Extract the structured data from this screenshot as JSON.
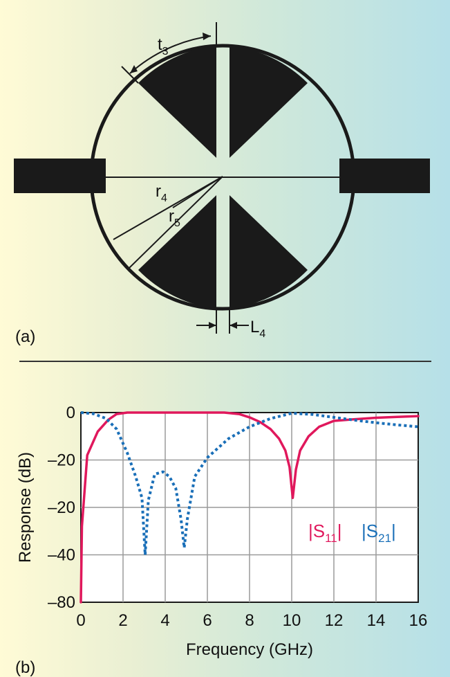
{
  "panel_a": {
    "label": "(a)",
    "dim_t": "t",
    "dim_t_sub": "3",
    "dim_r4": "r",
    "dim_r4_sub": "4",
    "dim_r5": "r",
    "dim_r5_sub": "5",
    "dim_L": "L",
    "dim_L_sub": "4"
  },
  "panel_b": {
    "label": "(b)",
    "legend_s11": "|S",
    "legend_s11_sub": "11",
    "legend_s11_end": "|",
    "legend_s21": "|S",
    "legend_s21_sub": "21",
    "legend_s21_end": "|",
    "s11_color": "#e0185c",
    "s21_color": "#1a6fb8"
  },
  "chart_data": {
    "type": "line",
    "xlabel": "Frequency (GHz)",
    "ylabel": "Response (dB)",
    "xlim": [
      0,
      16
    ],
    "x_ticks": [
      "0",
      "2",
      "4",
      "6",
      "8",
      "10",
      "12",
      "14",
      "16"
    ],
    "y_ticks": [
      "0",
      "–20",
      "–20",
      "–40",
      "–80"
    ],
    "grid": true,
    "series": [
      {
        "name": "|S11|",
        "style": "solid",
        "color": "#e0185c",
        "x": [
          0,
          0.05,
          0.3,
          0.8,
          1.3,
          1.7,
          2.2,
          3,
          4,
          5,
          6,
          6.8,
          7.5,
          8,
          8.5,
          9,
          9.4,
          9.7,
          9.9,
          10.05,
          10.2,
          10.4,
          10.8,
          11.3,
          12,
          13,
          14,
          15,
          16
        ],
        "y": [
          -80,
          -48,
          -18,
          -8,
          -3,
          -0.6,
          0,
          0,
          0,
          0,
          0,
          0,
          -0.6,
          -2,
          -4,
          -7,
          -11,
          -16,
          -23,
          -36,
          -24,
          -16,
          -10,
          -6,
          -3.5,
          -2.8,
          -2.2,
          -1.8,
          -1.5
        ]
      },
      {
        "name": "|S21|",
        "style": "dotted",
        "color": "#1a6fb8",
        "x": [
          0,
          0.6,
          1.2,
          1.7,
          2.2,
          2.6,
          2.9,
          3.05,
          3.2,
          3.5,
          3.9,
          4.2,
          4.5,
          4.75,
          4.9,
          5.05,
          5.4,
          6,
          7,
          8,
          9,
          10,
          11,
          12,
          13,
          14,
          15,
          16
        ],
        "y": [
          0,
          -0.5,
          -2.5,
          -7,
          -17,
          -27,
          -36,
          -60,
          -37,
          -26,
          -25,
          -27,
          -32,
          -45,
          -57,
          -45,
          -27,
          -19,
          -11,
          -6,
          -2.5,
          -0.3,
          -0.8,
          -2,
          -3.2,
          -4.3,
          -5.2,
          -6
        ]
      }
    ]
  }
}
